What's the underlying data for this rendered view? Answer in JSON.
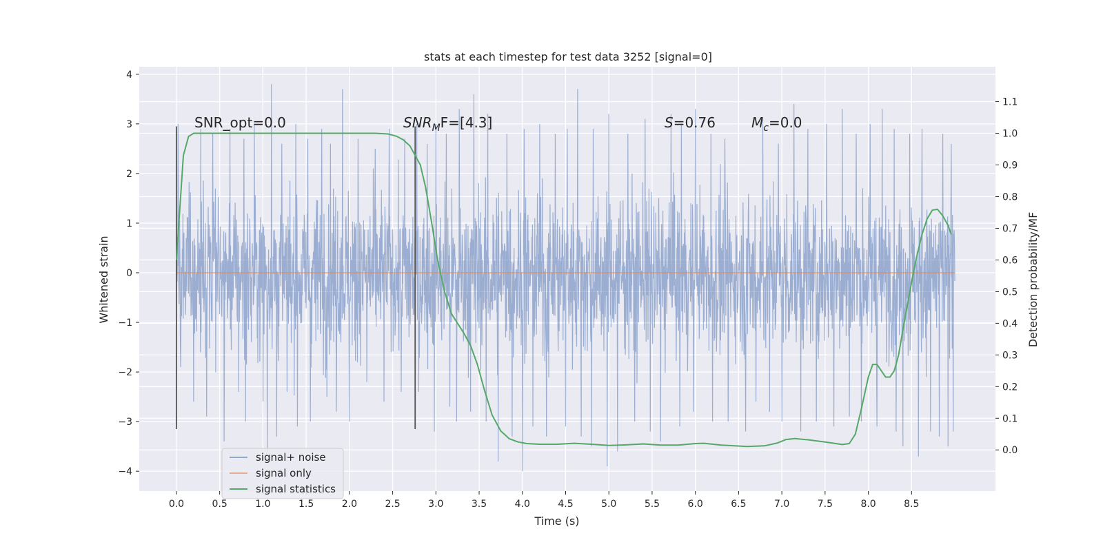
{
  "chart_data": {
    "type": "line",
    "title": "stats at each timestep for test data 3252 [signal=0]",
    "xlabel": "Time (s)",
    "ylabel": "Whitened strain",
    "y2label": "Detection probability/MF",
    "xlim": [
      -0.43,
      9.47
    ],
    "ylim": [
      -4.4,
      4.15
    ],
    "y2lim": [
      -0.13,
      1.21
    ],
    "x_ticks": [
      "0.0",
      "0.5",
      "1.0",
      "1.5",
      "2.0",
      "2.5",
      "3.0",
      "3.5",
      "4.0",
      "4.5",
      "5.0",
      "5.5",
      "6.0",
      "6.5",
      "7.0",
      "7.5",
      "8.0",
      "8.5"
    ],
    "y_ticks": [
      "4",
      "3",
      "2",
      "1",
      "0",
      "−1",
      "−2",
      "−3",
      "−4"
    ],
    "y2_ticks": [
      "1.1",
      "1.0",
      "0.9",
      "0.8",
      "0.7",
      "0.6",
      "0.5",
      "0.4",
      "0.3",
      "0.2",
      "0.1",
      "0.0"
    ],
    "grid": true,
    "legend_position": "lower-left",
    "legend": [
      "signal+ noise",
      "signal only",
      "signal statistics"
    ],
    "annotations": {
      "snr_opt": "SNR_opt=0.0",
      "snr_mf_main": "SNR",
      "snr_mf_sub": "M",
      "snr_mf_rest": "F=[4.3]",
      "s_letter": "S",
      "s_value": "=0.76",
      "mc_letter": "M",
      "mc_sub": "c",
      "mc_value": "=0.0"
    },
    "vertical_markers": [
      {
        "x": 0.0,
        "ymin": -3.15,
        "ymax": 2.95
      },
      {
        "x": 2.76,
        "ymin": -3.15,
        "ymax": 2.95
      }
    ],
    "series": [
      {
        "name": "signal+ noise",
        "color": "#4c72b0",
        "x_start": 0.0,
        "x_end": 9.0,
        "typical_range": [
          -1.3,
          1.2
        ],
        "peaks": [
          [
            0.02,
            3.0
          ],
          [
            0.28,
            2.9
          ],
          [
            0.42,
            2.8
          ],
          [
            0.62,
            2.9
          ],
          [
            0.78,
            2.7
          ],
          [
            0.9,
            3.0
          ],
          [
            1.1,
            3.8
          ],
          [
            1.22,
            2.6
          ],
          [
            1.38,
            3.0
          ],
          [
            1.52,
            2.7
          ],
          [
            1.68,
            2.9
          ],
          [
            1.78,
            2.6
          ],
          [
            1.92,
            3.7
          ],
          [
            2.1,
            2.7
          ],
          [
            2.3,
            2.5
          ],
          [
            2.46,
            2.9
          ],
          [
            2.64,
            2.7
          ],
          [
            2.78,
            3.0
          ],
          [
            2.9,
            2.6
          ],
          [
            3.0,
            3.0
          ],
          [
            3.12,
            2.8
          ],
          [
            3.27,
            3.3
          ],
          [
            3.44,
            3.6
          ],
          [
            3.6,
            3.2
          ],
          [
            3.82,
            2.8
          ],
          [
            4.02,
            2.9
          ],
          [
            4.2,
            3.0
          ],
          [
            4.38,
            2.8
          ],
          [
            4.52,
            2.9
          ],
          [
            4.64,
            3.7
          ],
          [
            4.82,
            2.9
          ],
          [
            5.0,
            3.2
          ],
          [
            5.22,
            2.8
          ],
          [
            5.42,
            3.1
          ],
          [
            5.6,
            2.9
          ],
          [
            5.72,
            3.2
          ],
          [
            5.84,
            3.0
          ],
          [
            6.0,
            3.3
          ],
          [
            6.18,
            2.8
          ],
          [
            6.34,
            2.7
          ],
          [
            6.58,
            2.8
          ],
          [
            6.78,
            3.1
          ],
          [
            6.96,
            2.6
          ],
          [
            7.14,
            3.4
          ],
          [
            7.3,
            2.9
          ],
          [
            7.52,
            3.0
          ],
          [
            7.7,
            3.3
          ],
          [
            7.86,
            2.8
          ],
          [
            8.02,
            3.0
          ],
          [
            8.16,
            3.3
          ],
          [
            8.3,
            2.9
          ],
          [
            8.48,
            2.8
          ],
          [
            8.62,
            2.9
          ],
          [
            8.72,
            3.0
          ],
          [
            8.86,
            2.8
          ],
          [
            8.96,
            2.6
          ]
        ],
        "troughs": [
          [
            0.05,
            -1.9
          ],
          [
            0.2,
            -2.6
          ],
          [
            0.35,
            -2.9
          ],
          [
            0.55,
            -3.4
          ],
          [
            0.72,
            -2.4
          ],
          [
            0.8,
            -3.0
          ],
          [
            1.0,
            -2.6
          ],
          [
            1.05,
            -3.6
          ],
          [
            1.16,
            -3.3
          ],
          [
            1.28,
            -2.4
          ],
          [
            1.4,
            -3.1
          ],
          [
            1.55,
            -3.0
          ],
          [
            1.74,
            -2.5
          ],
          [
            1.85,
            -2.8
          ],
          [
            2.0,
            -3.0
          ],
          [
            2.2,
            -2.2
          ],
          [
            2.4,
            -2.6
          ],
          [
            2.6,
            -2.4
          ],
          [
            2.8,
            -2.4
          ],
          [
            2.98,
            -3.2
          ],
          [
            3.16,
            -2.7
          ],
          [
            3.24,
            -3.0
          ],
          [
            3.4,
            -2.8
          ],
          [
            3.58,
            -3.0
          ],
          [
            3.72,
            -3.8
          ],
          [
            3.88,
            -3.3
          ],
          [
            4.0,
            -4.0
          ],
          [
            4.12,
            -3.1
          ],
          [
            4.28,
            -3.3
          ],
          [
            4.5,
            -3.1
          ],
          [
            4.68,
            -3.3
          ],
          [
            4.8,
            -3.5
          ],
          [
            4.98,
            -3.9
          ],
          [
            5.1,
            -3.6
          ],
          [
            5.3,
            -3.0
          ],
          [
            5.48,
            -3.2
          ],
          [
            5.6,
            -3.4
          ],
          [
            5.82,
            -3.1
          ],
          [
            5.98,
            -2.8
          ],
          [
            6.2,
            -3.0
          ],
          [
            6.38,
            -3.0
          ],
          [
            6.58,
            -3.2
          ],
          [
            6.7,
            -2.6
          ],
          [
            6.86,
            -2.8
          ],
          [
            7.0,
            -3.0
          ],
          [
            7.22,
            -3.2
          ],
          [
            7.4,
            -3.0
          ],
          [
            7.6,
            -3.1
          ],
          [
            7.78,
            -2.9
          ],
          [
            7.92,
            -3.0
          ],
          [
            8.1,
            -3.1
          ],
          [
            8.32,
            -3.2
          ],
          [
            8.4,
            -3.5
          ],
          [
            8.58,
            -3.7
          ],
          [
            8.72,
            -3.2
          ],
          [
            8.82,
            -3.3
          ],
          [
            8.92,
            -3.5
          ],
          [
            8.98,
            -3.2
          ]
        ]
      },
      {
        "name": "signal only",
        "color": "#dd8452",
        "x": [
          0.0,
          9.0
        ],
        "y": [
          0.0,
          0.0
        ]
      },
      {
        "name": "signal statistics",
        "color": "#55a868",
        "axis": "right",
        "x": [
          0.0,
          0.08,
          0.14,
          0.2,
          0.3,
          0.4,
          0.6,
          1.0,
          1.5,
          2.0,
          2.3,
          2.45,
          2.55,
          2.62,
          2.7,
          2.76,
          2.82,
          2.88,
          2.95,
          3.02,
          3.1,
          3.18,
          3.25,
          3.32,
          3.4,
          3.48,
          3.56,
          3.65,
          3.75,
          3.85,
          3.95,
          4.05,
          4.2,
          4.4,
          4.6,
          4.8,
          5.0,
          5.2,
          5.4,
          5.6,
          5.8,
          6.0,
          6.1,
          6.3,
          6.6,
          6.8,
          6.95,
          7.05,
          7.15,
          7.3,
          7.5,
          7.7,
          7.78,
          7.85,
          7.92,
          8.0,
          8.05,
          8.1,
          8.15,
          8.2,
          8.25,
          8.3,
          8.35,
          8.4,
          8.48,
          8.55,
          8.62,
          8.68,
          8.74,
          8.8,
          8.86,
          8.92,
          8.96
        ],
        "y": [
          0.6,
          0.93,
          0.99,
          1.0,
          1.0,
          1.0,
          1.0,
          1.0,
          1.0,
          1.0,
          1.0,
          0.998,
          0.99,
          0.98,
          0.96,
          0.93,
          0.9,
          0.83,
          0.72,
          0.6,
          0.5,
          0.43,
          0.4,
          0.37,
          0.33,
          0.27,
          0.19,
          0.11,
          0.06,
          0.035,
          0.025,
          0.02,
          0.018,
          0.018,
          0.021,
          0.018,
          0.014,
          0.016,
          0.019,
          0.015,
          0.015,
          0.02,
          0.021,
          0.015,
          0.011,
          0.013,
          0.022,
          0.033,
          0.036,
          0.032,
          0.025,
          0.017,
          0.02,
          0.05,
          0.13,
          0.23,
          0.27,
          0.27,
          0.25,
          0.23,
          0.23,
          0.25,
          0.3,
          0.38,
          0.5,
          0.6,
          0.68,
          0.73,
          0.757,
          0.76,
          0.74,
          0.71,
          0.68
        ]
      }
    ]
  }
}
